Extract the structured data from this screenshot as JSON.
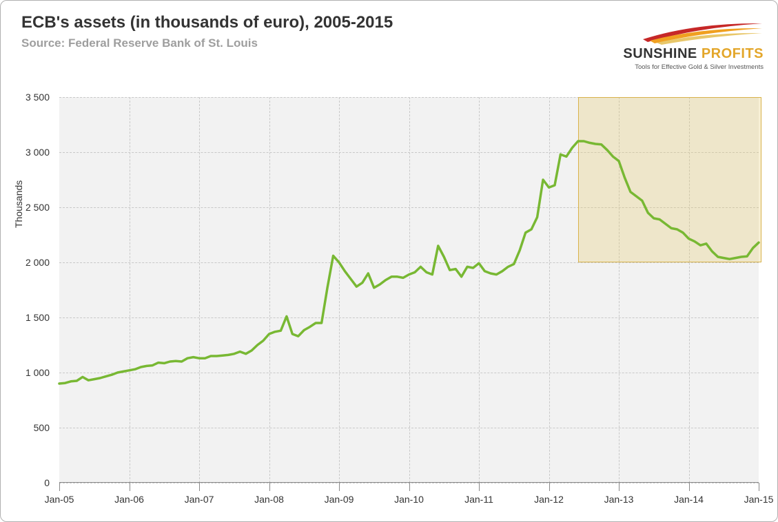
{
  "chart": {
    "type": "line",
    "title": "ECB's assets (in thousands of euro), 2005-2015",
    "subtitle": "Source: Federal Reserve Bank of St. Louis",
    "title_fontsize": 24,
    "subtitle_fontsize": 17,
    "title_color": "#333333",
    "subtitle_color": "#9e9e9e",
    "background_color": "#ffffff",
    "plot_background_color": "#f2f2f2",
    "grid_color": "#c8c8c8",
    "grid_dash": "dashed",
    "axis_color": "#888888",
    "border_color": "#b0b0b0",
    "border_radius": 10,
    "yaxis": {
      "title": "Thousands",
      "min": 0,
      "max": 3500,
      "tick_step": 500,
      "ticks": [
        0,
        500,
        1000,
        1500,
        2000,
        2500,
        3000,
        3500
      ],
      "tick_labels": [
        "0",
        "500",
        "1 000",
        "1 500",
        "2 000",
        "2 500",
        "3 000",
        "3 500"
      ],
      "label_fontsize": 14,
      "label_color": "#333333"
    },
    "xaxis": {
      "min": 0,
      "max": 120,
      "ticks": [
        0,
        12,
        24,
        36,
        48,
        60,
        72,
        84,
        96,
        108,
        120
      ],
      "tick_labels": [
        "Jan-05",
        "Jan-06",
        "Jan-07",
        "Jan-08",
        "Jan-09",
        "Jan-10",
        "Jan-11",
        "Jan-12",
        "Jan-13",
        "Jan-14",
        "Jan-15"
      ],
      "label_fontsize": 14,
      "label_color": "#333333"
    },
    "highlight": {
      "x_start": 89,
      "x_end": 120.5,
      "y_start": 2000,
      "y_end": 3500,
      "fill_color": "rgba(230,200,100,0.28)",
      "border_color": "#d8b24a"
    },
    "series": {
      "name": "ECB assets",
      "color": "#78b833",
      "line_width": 3.5,
      "data": [
        [
          0,
          900
        ],
        [
          1,
          905
        ],
        [
          2,
          920
        ],
        [
          3,
          925
        ],
        [
          4,
          960
        ],
        [
          5,
          930
        ],
        [
          6,
          940
        ],
        [
          7,
          950
        ],
        [
          8,
          965
        ],
        [
          9,
          980
        ],
        [
          10,
          1000
        ],
        [
          11,
          1010
        ],
        [
          12,
          1020
        ],
        [
          13,
          1030
        ],
        [
          14,
          1050
        ],
        [
          15,
          1060
        ],
        [
          16,
          1065
        ],
        [
          17,
          1090
        ],
        [
          18,
          1085
        ],
        [
          19,
          1100
        ],
        [
          20,
          1105
        ],
        [
          21,
          1100
        ],
        [
          22,
          1130
        ],
        [
          23,
          1140
        ],
        [
          24,
          1130
        ],
        [
          25,
          1130
        ],
        [
          26,
          1150
        ],
        [
          27,
          1150
        ],
        [
          28,
          1155
        ],
        [
          29,
          1160
        ],
        [
          30,
          1170
        ],
        [
          31,
          1190
        ],
        [
          32,
          1170
        ],
        [
          33,
          1200
        ],
        [
          34,
          1250
        ],
        [
          35,
          1290
        ],
        [
          36,
          1350
        ],
        [
          37,
          1370
        ],
        [
          38,
          1380
        ],
        [
          39,
          1510
        ],
        [
          40,
          1350
        ],
        [
          41,
          1330
        ],
        [
          42,
          1385
        ],
        [
          43,
          1415
        ],
        [
          44,
          1450
        ],
        [
          45,
          1450
        ],
        [
          46,
          1770
        ],
        [
          47,
          2060
        ],
        [
          48,
          2000
        ],
        [
          49,
          1920
        ],
        [
          50,
          1850
        ],
        [
          51,
          1780
        ],
        [
          52,
          1815
        ],
        [
          53,
          1900
        ],
        [
          54,
          1770
        ],
        [
          55,
          1800
        ],
        [
          56,
          1840
        ],
        [
          57,
          1870
        ],
        [
          58,
          1870
        ],
        [
          59,
          1860
        ],
        [
          60,
          1890
        ],
        [
          61,
          1910
        ],
        [
          62,
          1960
        ],
        [
          63,
          1910
        ],
        [
          64,
          1890
        ],
        [
          65,
          2150
        ],
        [
          66,
          2050
        ],
        [
          67,
          1930
        ],
        [
          68,
          1940
        ],
        [
          69,
          1870
        ],
        [
          70,
          1960
        ],
        [
          71,
          1950
        ],
        [
          72,
          1992
        ],
        [
          73,
          1920
        ],
        [
          74,
          1900
        ],
        [
          75,
          1890
        ],
        [
          76,
          1920
        ],
        [
          77,
          1960
        ],
        [
          78,
          1985
        ],
        [
          79,
          2110
        ],
        [
          80,
          2270
        ],
        [
          81,
          2300
        ],
        [
          82,
          2410
        ],
        [
          83,
          2750
        ],
        [
          84,
          2680
        ],
        [
          85,
          2700
        ],
        [
          86,
          2980
        ],
        [
          87,
          2960
        ],
        [
          88,
          3040
        ],
        [
          89,
          3100
        ],
        [
          90,
          3100
        ],
        [
          91,
          3085
        ],
        [
          92,
          3075
        ],
        [
          93,
          3070
        ],
        [
          94,
          3020
        ],
        [
          95,
          2960
        ],
        [
          96,
          2920
        ],
        [
          97,
          2770
        ],
        [
          98,
          2640
        ],
        [
          99,
          2600
        ],
        [
          100,
          2560
        ],
        [
          101,
          2450
        ],
        [
          102,
          2400
        ],
        [
          103,
          2390
        ],
        [
          104,
          2350
        ],
        [
          105,
          2310
        ],
        [
          106,
          2300
        ],
        [
          107,
          2270
        ],
        [
          108,
          2215
        ],
        [
          109,
          2190
        ],
        [
          110,
          2155
        ],
        [
          111,
          2170
        ],
        [
          112,
          2100
        ],
        [
          113,
          2050
        ],
        [
          114,
          2040
        ],
        [
          115,
          2030
        ],
        [
          116,
          2040
        ],
        [
          117,
          2050
        ],
        [
          118,
          2055
        ],
        [
          119,
          2130
        ],
        [
          120,
          2180
        ]
      ]
    }
  },
  "logo": {
    "brand_part1": "SUNSHINE",
    "brand_part2": "PROFITS",
    "tagline": "Tools for Effective Gold & Silver Investments",
    "brand_color": "#333333",
    "accent_color": "#e3a62a",
    "swoosh_colors": [
      "#c62828",
      "#f0a020",
      "#e8c76a"
    ]
  }
}
